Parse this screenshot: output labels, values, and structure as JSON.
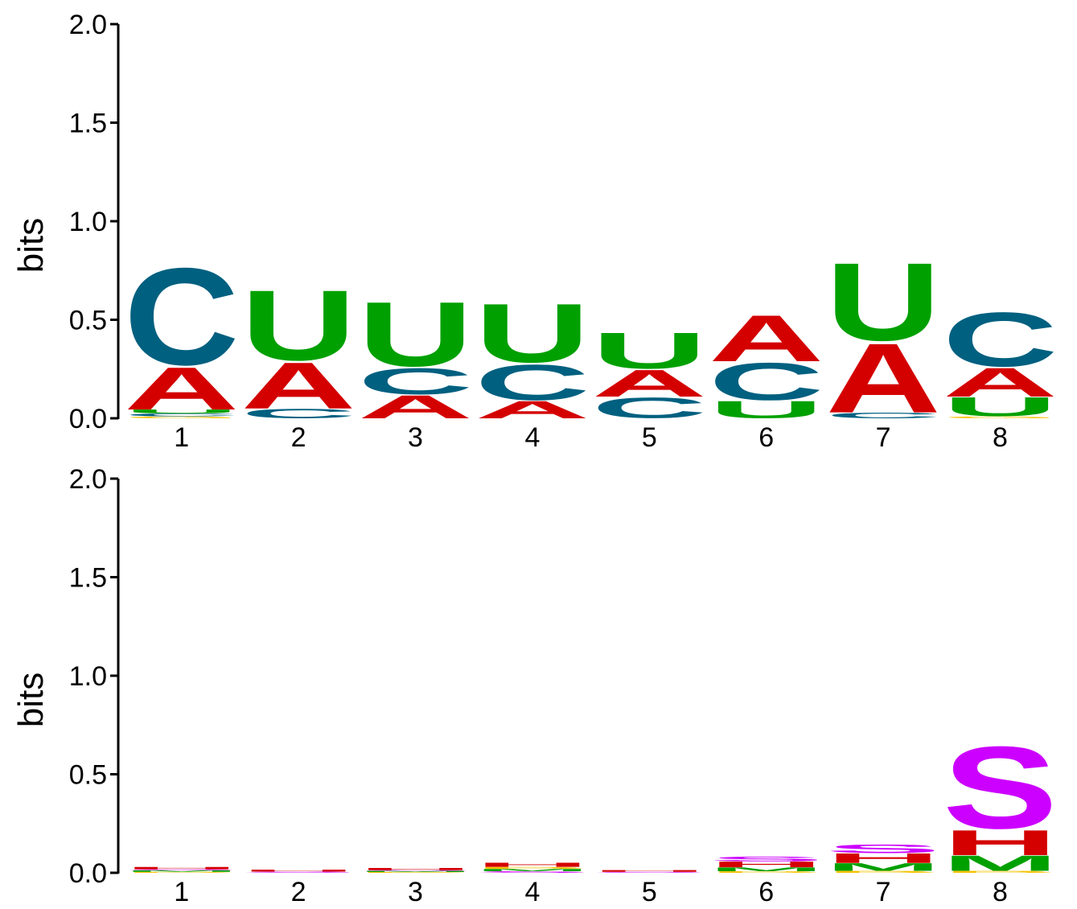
{
  "chart_data": [
    {
      "type": "sequence-logo",
      "ylabel": "bits",
      "ylim": [
        0,
        2.0
      ],
      "yticks": [
        "0.0",
        "0.5",
        "1.0",
        "1.5",
        "2.0"
      ],
      "positions": [
        "1",
        "2",
        "3",
        "4",
        "5",
        "6",
        "7",
        "8"
      ],
      "colors": {
        "A": "#d40000",
        "C": "#006080",
        "G": "#f5c200",
        "U": "#00a000"
      },
      "stacks": [
        [
          {
            "l": "G",
            "h": 0.01
          },
          {
            "l": "C",
            "h": 0.015
          },
          {
            "l": "U",
            "h": 0.02
          },
          {
            "l": "A",
            "h": 0.22
          },
          {
            "l": "C",
            "h": 0.52
          }
        ],
        [
          {
            "l": "C",
            "h": 0.05
          },
          {
            "l": "A",
            "h": 0.24
          },
          {
            "l": "U",
            "h": 0.37
          }
        ],
        [
          {
            "l": "A",
            "h": 0.12
          },
          {
            "l": "C",
            "h": 0.14
          },
          {
            "l": "U",
            "h": 0.34
          }
        ],
        [
          {
            "l": "A",
            "h": 0.09
          },
          {
            "l": "C",
            "h": 0.19
          },
          {
            "l": "U",
            "h": 0.31
          }
        ],
        [
          {
            "l": "C",
            "h": 0.11
          },
          {
            "l": "A",
            "h": 0.14
          },
          {
            "l": "U",
            "h": 0.19
          }
        ],
        [
          {
            "l": "U",
            "h": 0.09
          },
          {
            "l": "C",
            "h": 0.2
          },
          {
            "l": "A",
            "h": 0.24
          }
        ],
        [
          {
            "l": "C",
            "h": 0.03
          },
          {
            "l": "A",
            "h": 0.36
          },
          {
            "l": "U",
            "h": 0.41
          }
        ],
        [
          {
            "l": "G",
            "h": 0.01
          },
          {
            "l": "U",
            "h": 0.1
          },
          {
            "l": "A",
            "h": 0.15
          },
          {
            "l": "C",
            "h": 0.29
          }
        ]
      ]
    },
    {
      "type": "sequence-logo",
      "ylabel": "bits",
      "ylim": [
        0,
        2.0
      ],
      "yticks": [
        "0.0",
        "0.5",
        "1.0",
        "1.5",
        "2.0"
      ],
      "positions": [
        "1",
        "2",
        "3",
        "4",
        "5",
        "6",
        "7",
        "8"
      ],
      "colors": {
        "M": "#00a000",
        "H": "#d40000",
        "S": "#cc00ff",
        "B": "#f5c200"
      },
      "stacks": [
        [
          {
            "l": "B",
            "h": 0.005
          },
          {
            "l": "M",
            "h": 0.008
          },
          {
            "l": "S",
            "h": 0.005
          },
          {
            "l": "H",
            "h": 0.012
          }
        ],
        [
          {
            "l": "S",
            "h": 0.006
          },
          {
            "l": "H",
            "h": 0.01
          }
        ],
        [
          {
            "l": "B",
            "h": 0.004
          },
          {
            "l": "M",
            "h": 0.006
          },
          {
            "l": "S",
            "h": 0.004
          },
          {
            "l": "H",
            "h": 0.011
          }
        ],
        [
          {
            "l": "S",
            "h": 0.008
          },
          {
            "l": "M",
            "h": 0.012
          },
          {
            "l": "B",
            "h": 0.01
          },
          {
            "l": "H",
            "h": 0.022
          }
        ],
        [
          {
            "l": "S",
            "h": 0.005
          },
          {
            "l": "H",
            "h": 0.009
          }
        ],
        [
          {
            "l": "B",
            "h": 0.008
          },
          {
            "l": "M",
            "h": 0.02
          },
          {
            "l": "H",
            "h": 0.03
          },
          {
            "l": "S",
            "h": 0.025
          }
        ],
        [
          {
            "l": "B",
            "h": 0.01
          },
          {
            "l": "M",
            "h": 0.04
          },
          {
            "l": "H",
            "h": 0.05
          },
          {
            "l": "S",
            "h": 0.045
          }
        ],
        [
          {
            "l": "B",
            "h": 0.01
          },
          {
            "l": "M",
            "h": 0.08
          },
          {
            "l": "H",
            "h": 0.13
          },
          {
            "l": "S",
            "h": 0.44
          }
        ]
      ]
    }
  ]
}
